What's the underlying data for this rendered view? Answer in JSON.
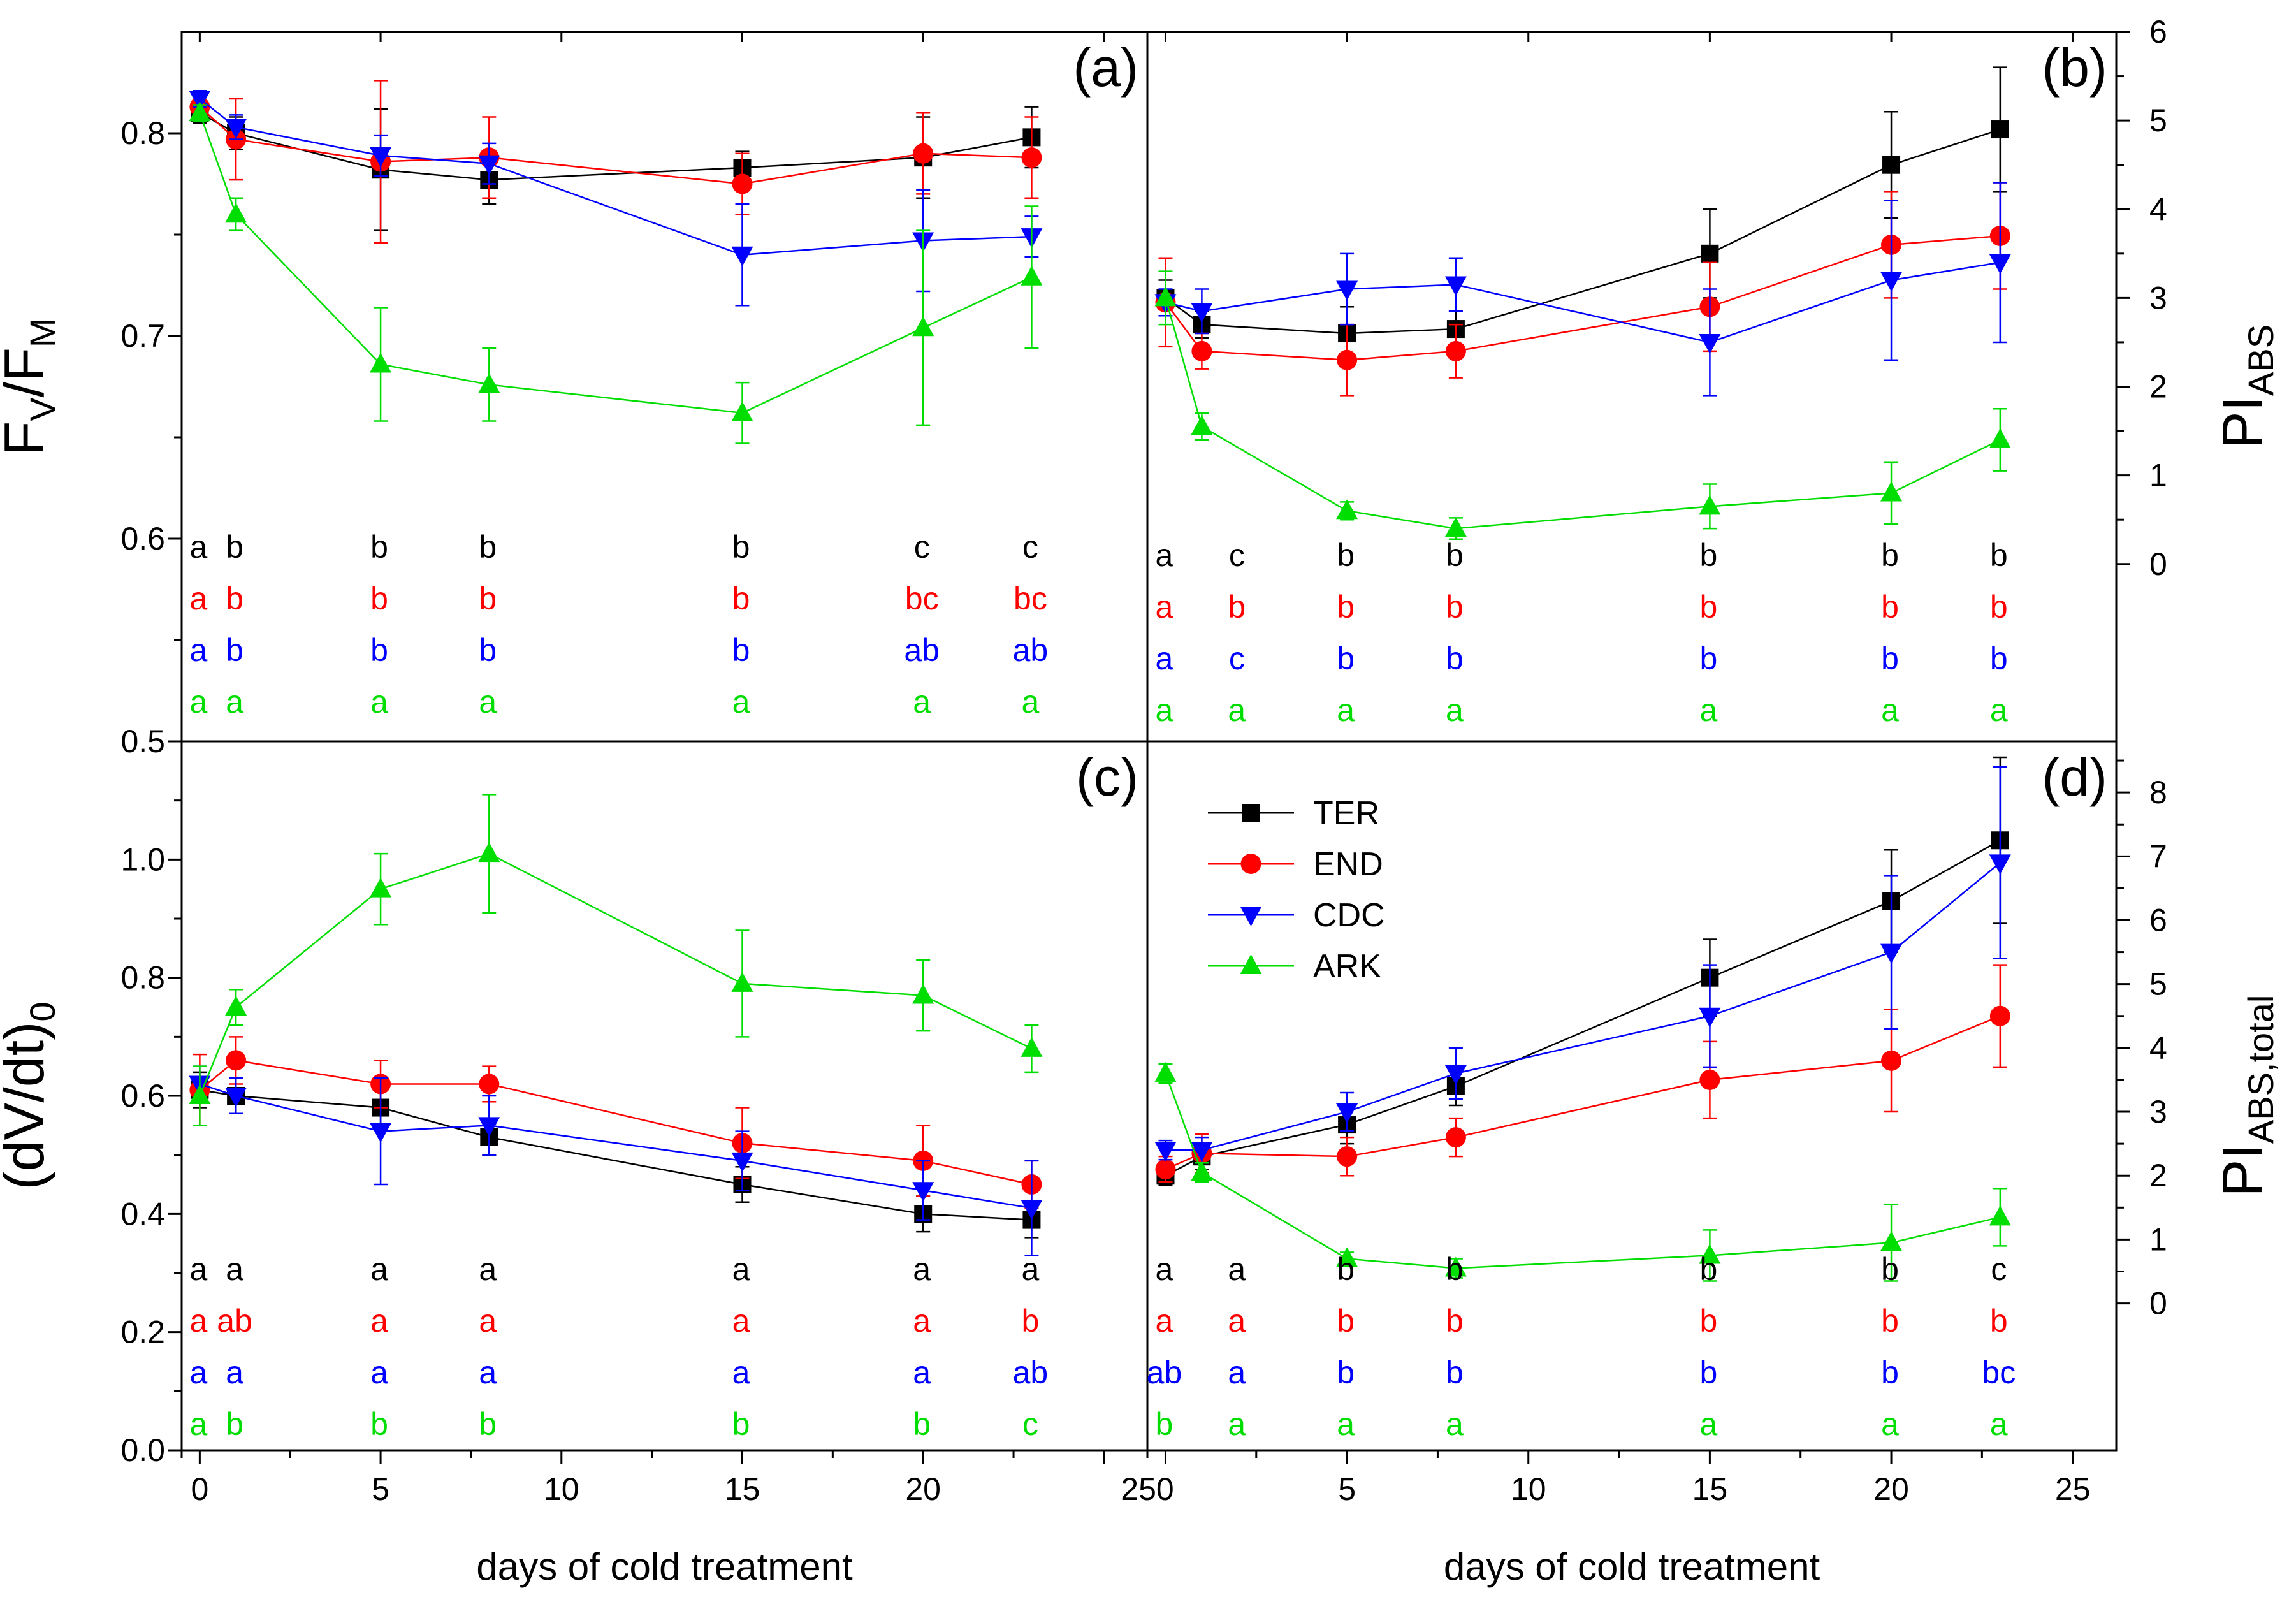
{
  "figure": {
    "xlabel": "days of cold treatment",
    "x_ticks": [
      "0",
      "5",
      "10",
      "15",
      "20",
      "25"
    ],
    "x_ticks_top_left": [
      "0",
      "5",
      "10",
      "15",
      "20"
    ],
    "x_joint_label": "250",
    "series_colors": {
      "TER": "#000000",
      "END": "#ff0000",
      "CDC": "#0000ff",
      "ARK": "#00dd00"
    },
    "legend": [
      {
        "name": "TER",
        "marker": "square",
        "color": "#000000"
      },
      {
        "name": "END",
        "marker": "circle",
        "color": "#ff0000"
      },
      {
        "name": "CDC",
        "marker": "tri-down",
        "color": "#0000ff"
      },
      {
        "name": "ARK",
        "marker": "tri-up",
        "color": "#00dd00"
      }
    ]
  },
  "chart_data": [
    {
      "id": "a",
      "type": "line",
      "panel_label": "(a)",
      "ylabel_main": "F",
      "ylabel_sub1": "V",
      "ylabel_mid": "/F",
      "ylabel_sub2": "M",
      "y_side": "left",
      "ylim": [
        0.5,
        0.85
      ],
      "y_ticks": [
        "0.5",
        "0.6",
        "0.7",
        "0.8"
      ],
      "y_tick_values": [
        0.5,
        0.6,
        0.7,
        0.8
      ],
      "x": [
        0,
        1,
        5,
        8,
        15,
        20,
        23
      ],
      "series": [
        {
          "name": "TER",
          "values": [
            0.81,
            0.8,
            0.782,
            0.777,
            0.783,
            0.788,
            0.798
          ],
          "err": [
            0.005,
            0.008,
            0.03,
            0.012,
            0.008,
            0.02,
            0.015
          ]
        },
        {
          "name": "END",
          "values": [
            0.813,
            0.797,
            0.786,
            0.788,
            0.775,
            0.79,
            0.788
          ],
          "err": [
            0.005,
            0.02,
            0.04,
            0.02,
            0.015,
            0.02,
            0.02
          ]
        },
        {
          "name": "CDC",
          "values": [
            0.817,
            0.803,
            0.789,
            0.785,
            0.74,
            0.747,
            0.749
          ],
          "err": [
            0.004,
            0.006,
            0.01,
            0.01,
            0.025,
            0.025,
            0.01
          ]
        },
        {
          "name": "ARK",
          "values": [
            0.81,
            0.76,
            0.686,
            0.676,
            0.662,
            0.704,
            0.729
          ],
          "err": [
            0.004,
            0.008,
            0.028,
            0.018,
            0.015,
            0.048,
            0.035
          ]
        }
      ],
      "letters_x": [
        0,
        1,
        5,
        8,
        15,
        20,
        23
      ],
      "letters": {
        "TER": [
          "a",
          "b",
          "b",
          "b",
          "b",
          "c",
          "c"
        ],
        "END": [
          "a",
          "b",
          "b",
          "b",
          "b",
          "bc",
          "bc"
        ],
        "CDC": [
          "a",
          "b",
          "b",
          "b",
          "b",
          "ab",
          "ab"
        ],
        "ARK": [
          "a",
          "a",
          "a",
          "a",
          "a",
          "a",
          "a"
        ]
      }
    },
    {
      "id": "b",
      "type": "line",
      "panel_label": "(b)",
      "ylabel_main": "PI",
      "ylabel_sub1": "ABS",
      "y_side": "right",
      "ylim": [
        -2,
        6
      ],
      "y_ticks": [
        "0",
        "1",
        "2",
        "3",
        "4",
        "5",
        "6"
      ],
      "y_tick_values": [
        0,
        1,
        2,
        3,
        4,
        5,
        6
      ],
      "x": [
        0,
        1,
        5,
        8,
        15,
        20,
        23
      ],
      "series": [
        {
          "name": "TER",
          "values": [
            3.0,
            2.7,
            2.6,
            2.65,
            3.5,
            4.5,
            4.9
          ],
          "err": [
            0.2,
            0.15,
            0.3,
            0.2,
            0.5,
            0.6,
            0.7
          ]
        },
        {
          "name": "END",
          "values": [
            2.95,
            2.4,
            2.3,
            2.4,
            2.9,
            3.6,
            3.7
          ],
          "err": [
            0.5,
            0.2,
            0.4,
            0.3,
            0.5,
            0.6,
            0.6
          ]
        },
        {
          "name": "CDC",
          "values": [
            2.95,
            2.85,
            3.1,
            3.15,
            2.5,
            3.2,
            3.4
          ],
          "err": [
            0.15,
            0.25,
            0.4,
            0.3,
            0.6,
            0.9,
            0.9
          ]
        },
        {
          "name": "ARK",
          "values": [
            3.0,
            1.55,
            0.6,
            0.4,
            0.65,
            0.8,
            1.4
          ],
          "err": [
            0.3,
            0.15,
            0.1,
            0.12,
            0.25,
            0.35,
            0.35
          ]
        }
      ],
      "letters_x": [
        0,
        2,
        5,
        8,
        15,
        20,
        23
      ],
      "letters": {
        "TER": [
          "a",
          "c",
          "b",
          "b",
          "b",
          "b",
          "b"
        ],
        "END": [
          "a",
          "b",
          "b",
          "b",
          "b",
          "b",
          "b"
        ],
        "CDC": [
          "a",
          "c",
          "b",
          "b",
          "b",
          "b",
          "b"
        ],
        "ARK": [
          "a",
          "a",
          "a",
          "a",
          "a",
          "a",
          "a"
        ]
      }
    },
    {
      "id": "c",
      "type": "line",
      "panel_label": "(c)",
      "ylabel_main": "(dV/dt)",
      "ylabel_sub1": "0",
      "y_side": "left",
      "ylim": [
        0.0,
        1.2
      ],
      "y_ticks": [
        "0.0",
        "0.2",
        "0.4",
        "0.6",
        "0.8",
        "1.0"
      ],
      "y_tick_values": [
        0.0,
        0.2,
        0.4,
        0.6,
        0.8,
        1.0
      ],
      "x": [
        0,
        1,
        5,
        8,
        15,
        20,
        23
      ],
      "series": [
        {
          "name": "TER",
          "values": [
            0.61,
            0.6,
            0.58,
            0.53,
            0.45,
            0.4,
            0.39
          ],
          "err": [
            0.03,
            0.03,
            0.03,
            0.03,
            0.03,
            0.03,
            0.03
          ]
        },
        {
          "name": "END",
          "values": [
            0.61,
            0.66,
            0.62,
            0.62,
            0.52,
            0.49,
            0.45
          ],
          "err": [
            0.06,
            0.04,
            0.04,
            0.03,
            0.06,
            0.06,
            0.04
          ]
        },
        {
          "name": "CDC",
          "values": [
            0.62,
            0.6,
            0.54,
            0.55,
            0.49,
            0.44,
            0.41
          ],
          "err": [
            0.03,
            0.03,
            0.09,
            0.05,
            0.05,
            0.05,
            0.08
          ]
        },
        {
          "name": "ARK",
          "values": [
            0.6,
            0.75,
            0.95,
            1.01,
            0.79,
            0.77,
            0.68
          ],
          "err": [
            0.05,
            0.03,
            0.06,
            0.1,
            0.09,
            0.06,
            0.04
          ]
        }
      ],
      "letters_x": [
        0,
        1,
        5,
        8,
        15,
        20,
        23
      ],
      "letters": {
        "TER": [
          "a",
          "a",
          "a",
          "a",
          "a",
          "a",
          "a"
        ],
        "END": [
          "a",
          "ab",
          "a",
          "a",
          "a",
          "a",
          "b"
        ],
        "CDC": [
          "a",
          "a",
          "a",
          "a",
          "a",
          "a",
          "ab"
        ],
        "ARK": [
          "a",
          "b",
          "b",
          "b",
          "b",
          "b",
          "c"
        ]
      }
    },
    {
      "id": "d",
      "type": "line",
      "panel_label": "(d)",
      "ylabel_main": "PI",
      "ylabel_sub1": "ABS,total",
      "y_side": "right",
      "ylim": [
        -2.3,
        8.8
      ],
      "y_ticks": [
        "0",
        "1",
        "2",
        "3",
        "4",
        "5",
        "6",
        "7",
        "8"
      ],
      "y_tick_values": [
        0,
        1,
        2,
        3,
        4,
        5,
        6,
        7,
        8
      ],
      "x": [
        0,
        1,
        5,
        8,
        15,
        20,
        23
      ],
      "series": [
        {
          "name": "TER",
          "values": [
            2.0,
            2.3,
            2.8,
            3.4,
            5.1,
            6.3,
            7.25
          ],
          "err": [
            0.15,
            0.2,
            0.3,
            0.3,
            0.6,
            0.8,
            1.3
          ]
        },
        {
          "name": "END",
          "values": [
            2.1,
            2.35,
            2.3,
            2.6,
            3.5,
            3.8,
            4.5
          ],
          "err": [
            0.2,
            0.3,
            0.3,
            0.3,
            0.6,
            0.8,
            0.8
          ]
        },
        {
          "name": "CDC",
          "values": [
            2.4,
            2.4,
            3.0,
            3.6,
            4.5,
            5.5,
            6.9
          ],
          "err": [
            0.15,
            0.2,
            0.3,
            0.4,
            0.8,
            1.2,
            1.5
          ]
        },
        {
          "name": "ARK",
          "values": [
            3.6,
            2.05,
            0.7,
            0.55,
            0.75,
            0.95,
            1.35
          ],
          "err": [
            0.15,
            0.15,
            0.1,
            0.15,
            0.4,
            0.6,
            0.45
          ]
        }
      ],
      "letters_x": [
        0,
        2,
        5,
        8,
        15,
        20,
        23
      ],
      "letters": {
        "TER": [
          "a",
          "a",
          "b",
          "b",
          "b",
          "b",
          "c"
        ],
        "END": [
          "a",
          "a",
          "b",
          "b",
          "b",
          "b",
          "b"
        ],
        "CDC": [
          "ab",
          "a",
          "b",
          "b",
          "b",
          "b",
          "bc"
        ],
        "ARK": [
          "b",
          "a",
          "a",
          "a",
          "a",
          "a",
          "a"
        ]
      }
    }
  ]
}
